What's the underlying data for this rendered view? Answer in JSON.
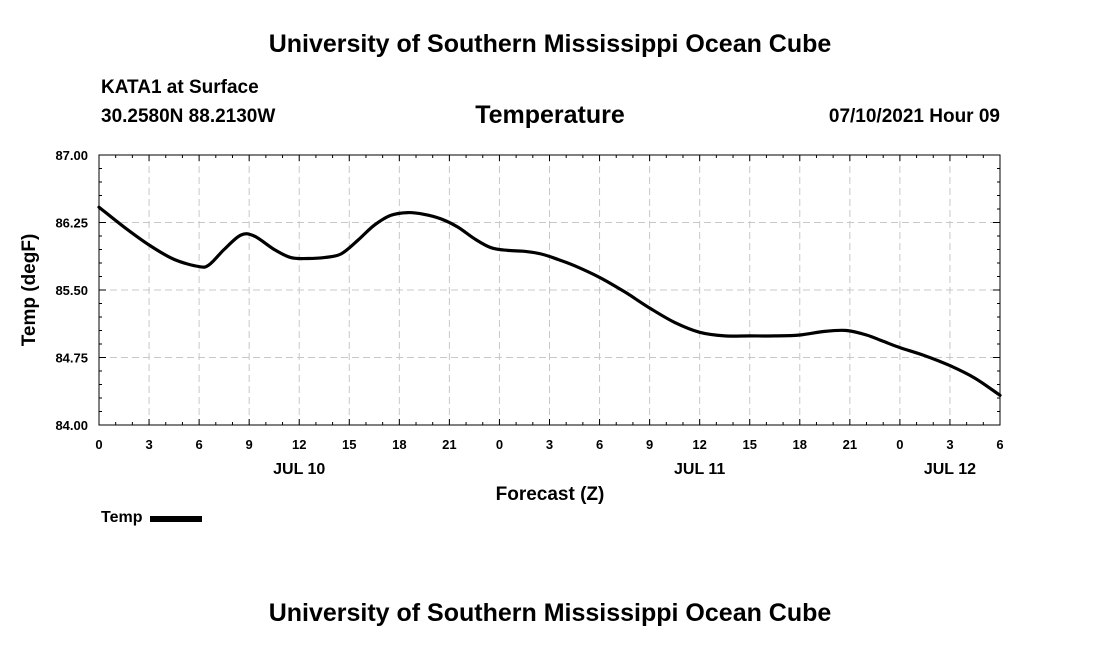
{
  "header": {
    "title": "University of Southern Mississippi Ocean Cube",
    "station": "KATA1 at Surface",
    "coords": "30.2580N  88.2130W",
    "chart_title": "Temperature",
    "valid_time": "07/10/2021 Hour 09"
  },
  "footer": {
    "title": "University of Southern Mississippi Ocean Cube"
  },
  "legend": {
    "label": "Temp"
  },
  "colors": {
    "line": "#000000",
    "grid": "#c8c8c8",
    "axis": "#000000"
  },
  "chart_data": {
    "type": "line",
    "title": "Temperature",
    "xlabel": "Forecast (Z)",
    "ylabel": "Temp (degF)",
    "xlim": [
      0,
      54
    ],
    "ylim": [
      84.0,
      87.0
    ],
    "grid": true,
    "legend_position": "bottom-left",
    "x_ticks": [
      0,
      3,
      6,
      9,
      12,
      15,
      18,
      21,
      24,
      27,
      30,
      33,
      36,
      39,
      42,
      45,
      48,
      51,
      54
    ],
    "x_tick_labels": [
      "0",
      "3",
      "6",
      "9",
      "12",
      "15",
      "18",
      "21",
      "0",
      "3",
      "6",
      "9",
      "12",
      "15",
      "18",
      "21",
      "0",
      "3",
      "6"
    ],
    "y_ticks": [
      84.0,
      84.75,
      85.5,
      86.25,
      87.0
    ],
    "y_tick_labels": [
      "84.00",
      "84.75",
      "85.50",
      "86.25",
      "87.00"
    ],
    "date_labels": [
      {
        "x": 12,
        "label": "JUL 10"
      },
      {
        "x": 36,
        "label": "JUL 11"
      },
      {
        "x": 51,
        "label": "JUL 12"
      }
    ],
    "series": [
      {
        "name": "Temp",
        "x": [
          0,
          1.5,
          3,
          4.5,
          6,
          6.6,
          7.5,
          8.5,
          9.3,
          10.5,
          11.5,
          12.5,
          13.5,
          14.5,
          15.5,
          16.5,
          17.5,
          18.5,
          19.5,
          20.5,
          21.5,
          22.5,
          23.5,
          24.5,
          25.5,
          26.5,
          27.5,
          28.5,
          30,
          31.5,
          33,
          34.5,
          36,
          37.5,
          39,
          40.5,
          42,
          43.5,
          44.8,
          46,
          47,
          48,
          49.5,
          51,
          52.5,
          54
        ],
        "y": [
          86.42,
          86.2,
          86.0,
          85.84,
          85.76,
          85.78,
          85.95,
          86.11,
          86.1,
          85.95,
          85.86,
          85.85,
          85.86,
          85.9,
          86.05,
          86.22,
          86.33,
          86.36,
          86.34,
          86.29,
          86.2,
          86.07,
          85.97,
          85.94,
          85.93,
          85.9,
          85.84,
          85.77,
          85.64,
          85.48,
          85.3,
          85.14,
          85.03,
          84.99,
          84.99,
          84.99,
          85.0,
          85.04,
          85.05,
          85.0,
          84.93,
          84.86,
          84.77,
          84.66,
          84.52,
          84.33
        ]
      }
    ]
  }
}
